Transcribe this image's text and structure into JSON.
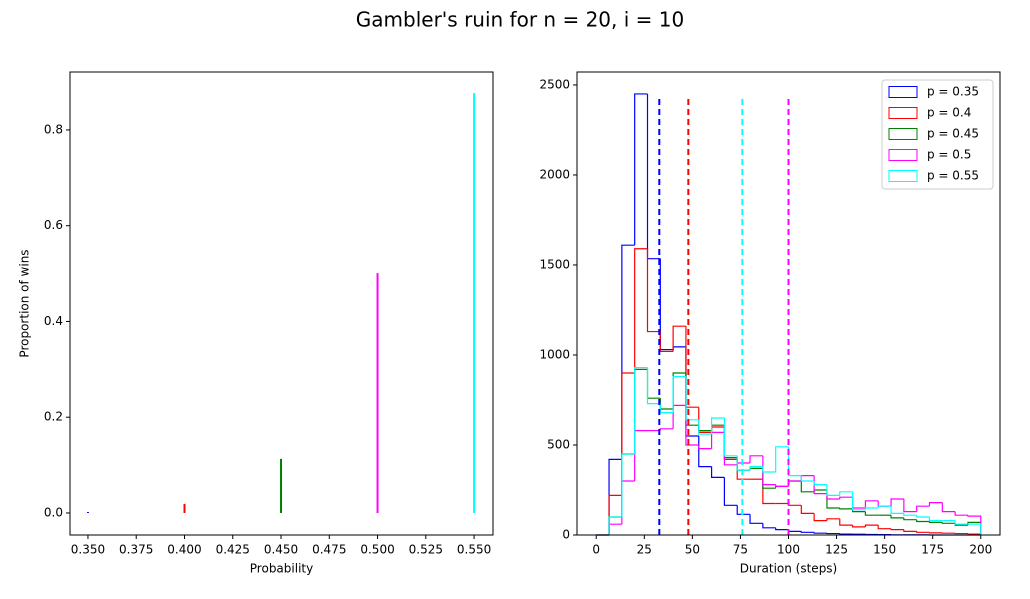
{
  "title": "Gambler's ruin for n = 20, i = 10",
  "chart_data": [
    {
      "type": "vlines",
      "xlabel": "Probability",
      "ylabel": "Proportion of wins",
      "x": [
        0.35,
        0.4,
        0.45,
        0.5,
        0.55
      ],
      "values": [
        0.002,
        0.019,
        0.113,
        0.501,
        0.877
      ],
      "colors": [
        "#0000ff",
        "#ff0000",
        "#008000",
        "#ff00ff",
        "#00ffff"
      ],
      "xlim": [
        0.3407,
        0.5598
      ],
      "xticks": [
        {
          "value": 0.35,
          "label": "0.350"
        },
        {
          "value": 0.375,
          "label": "0.375"
        },
        {
          "value": 0.4,
          "label": "0.400"
        },
        {
          "value": 0.425,
          "label": "0.425"
        },
        {
          "value": 0.45,
          "label": "0.450"
        },
        {
          "value": 0.475,
          "label": "0.475"
        },
        {
          "value": 0.5,
          "label": "0.500"
        },
        {
          "value": 0.525,
          "label": "0.525"
        },
        {
          "value": 0.55,
          "label": "0.550"
        }
      ],
      "ylim": [
        -0.046,
        0.921
      ],
      "yticks": [
        {
          "value": 0,
          "label": "0.0"
        },
        0.2,
        0.4,
        0.6,
        0.8
      ]
    },
    {
      "type": "histogram",
      "xlabel": "Duration (steps)",
      "legend": "upper right",
      "bins": [
        0,
        6.667,
        13.333,
        20,
        26.667,
        33.333,
        40,
        46.667,
        53.333,
        60,
        66.667,
        73.333,
        80,
        86.667,
        93.333,
        100,
        106.667,
        113.333,
        120,
        126.667,
        133.333,
        140,
        146.667,
        153.333,
        160,
        166.667,
        173.333,
        180,
        186.667,
        193.333,
        200
      ],
      "series": [
        {
          "name": "p = 0.35",
          "color": "#0000ff",
          "values": [
            0,
            420,
            1610,
            2450,
            1535,
            1030,
            1045,
            550,
            380,
            320,
            165,
            115,
            65,
            40,
            30,
            20,
            15,
            10,
            8,
            5,
            4,
            3,
            2,
            1,
            1,
            1,
            0,
            0,
            0,
            0
          ]
        },
        {
          "name": "p = 0.4",
          "color": "#ff0000",
          "values": [
            0,
            220,
            900,
            1590,
            1130,
            1020,
            1160,
            710,
            570,
            600,
            420,
            310,
            310,
            175,
            175,
            165,
            120,
            80,
            90,
            55,
            45,
            55,
            35,
            30,
            20,
            15,
            12,
            10,
            8,
            5
          ]
        },
        {
          "name": "p = 0.45",
          "color": "#008000",
          "values": [
            0,
            100,
            450,
            920,
            760,
            700,
            900,
            610,
            580,
            610,
            430,
            360,
            370,
            260,
            270,
            300,
            240,
            250,
            150,
            145,
            130,
            110,
            110,
            95,
            85,
            75,
            70,
            65,
            55,
            70
          ]
        },
        {
          "name": "p = 0.5",
          "color": "#ff00ff",
          "values": [
            0,
            60,
            300,
            580,
            580,
            590,
            720,
            500,
            480,
            570,
            390,
            400,
            440,
            280,
            270,
            300,
            330,
            230,
            200,
            210,
            150,
            190,
            160,
            200,
            130,
            160,
            180,
            130,
            110,
            105
          ]
        },
        {
          "name": "p = 0.55",
          "color": "#00ffff",
          "values": [
            0,
            100,
            450,
            930,
            730,
            680,
            880,
            640,
            560,
            650,
            440,
            360,
            380,
            350,
            490,
            330,
            300,
            280,
            220,
            240,
            140,
            150,
            160,
            120,
            110,
            100,
            80,
            80,
            60,
            60
          ]
        }
      ],
      "mean_lines": [
        {
          "x": 32.8,
          "ymin": 0,
          "ymax": 2440,
          "color": "#0000ff"
        },
        {
          "x": 47.9,
          "ymin": 0,
          "ymax": 2440,
          "color": "#ff0000"
        },
        {
          "x": 76,
          "ymin": 0,
          "ymax": 2440,
          "color": "#00ffff"
        },
        {
          "x": 100,
          "ymin": 0,
          "ymax": 2440,
          "color": "#ff00ff"
        }
      ],
      "xlim": [
        -10,
        210
      ],
      "xticks": [
        0,
        25,
        50,
        75,
        100,
        125,
        150,
        175,
        200
      ],
      "ylim": [
        0,
        2572
      ],
      "yticks": [
        0,
        500,
        1000,
        1500,
        2000,
        2500
      ]
    }
  ]
}
